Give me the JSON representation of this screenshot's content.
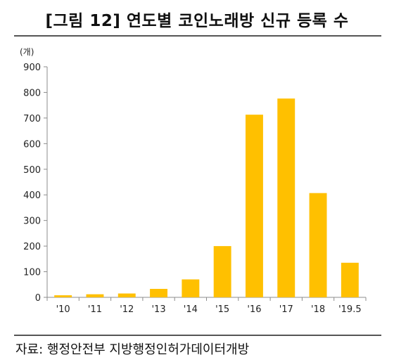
{
  "title": "[그림 12] 연도별 코인노래방 신규 등록 수",
  "source": "자료: 행정안전부 지방행정인허가데이터개방",
  "colors": {
    "bar": "#FFC000",
    "axis": "#8c8c8c",
    "text": "#222222"
  },
  "chart_data": {
    "type": "bar",
    "unit_label": "(개)",
    "categories": [
      "'10",
      "'11",
      "'12",
      "'13",
      "'14",
      "'15",
      "'16",
      "'17",
      "'18",
      "'19.5"
    ],
    "values": [
      8,
      12,
      15,
      33,
      70,
      200,
      713,
      776,
      407,
      135
    ],
    "ylim": [
      0,
      900
    ],
    "yticks": [
      0,
      100,
      200,
      300,
      400,
      500,
      600,
      700,
      800,
      900
    ],
    "grid": false,
    "legend": "none"
  }
}
